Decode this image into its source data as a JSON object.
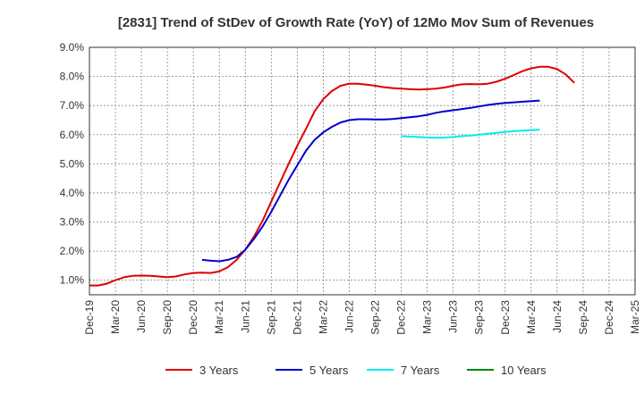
{
  "chart_data": {
    "type": "line",
    "title": "[2831]  Trend of StDev of Growth Rate (YoY) of 12Mo Mov Sum of Revenues",
    "xlabel": "",
    "ylabel": "",
    "x_ticks": [
      "Dec-19",
      "Mar-20",
      "Jun-20",
      "Sep-20",
      "Dec-20",
      "Mar-21",
      "Jun-21",
      "Sep-21",
      "Dec-21",
      "Mar-22",
      "Jun-22",
      "Sep-22",
      "Dec-22",
      "Mar-23",
      "Jun-23",
      "Sep-23",
      "Dec-23",
      "Mar-24",
      "Jun-24",
      "Sep-24",
      "Dec-24",
      "Mar-25"
    ],
    "y_ticks": [
      "1.0%",
      "2.0%",
      "3.0%",
      "4.0%",
      "5.0%",
      "6.0%",
      "7.0%",
      "8.0%",
      "9.0%"
    ],
    "ylim": [
      0.5,
      9.0
    ],
    "grid": true,
    "legend_position": "bottom",
    "series": [
      {
        "name": "3 Years",
        "color": "#dd0000",
        "points": [
          [
            0,
            0.82
          ],
          [
            1,
            0.82
          ],
          [
            2,
            0.88
          ],
          [
            3,
            1.0
          ],
          [
            4,
            1.1
          ],
          [
            5,
            1.15
          ],
          [
            6,
            1.16
          ],
          [
            7,
            1.15
          ],
          [
            8,
            1.13
          ],
          [
            9,
            1.1
          ],
          [
            10,
            1.13
          ],
          [
            11,
            1.2
          ],
          [
            12,
            1.25
          ],
          [
            13,
            1.26
          ],
          [
            14,
            1.25
          ],
          [
            15,
            1.3
          ],
          [
            16,
            1.45
          ],
          [
            17,
            1.7
          ],
          [
            18,
            2.05
          ],
          [
            19,
            2.5
          ],
          [
            20,
            3.05
          ],
          [
            21,
            3.7
          ],
          [
            22,
            4.35
          ],
          [
            23,
            5.0
          ],
          [
            24,
            5.62
          ],
          [
            25,
            6.2
          ],
          [
            26,
            6.8
          ],
          [
            27,
            7.22
          ],
          [
            28,
            7.5
          ],
          [
            29,
            7.68
          ],
          [
            30,
            7.75
          ],
          [
            31,
            7.75
          ],
          [
            32,
            7.72
          ],
          [
            33,
            7.68
          ],
          [
            34,
            7.63
          ],
          [
            35,
            7.6
          ],
          [
            36,
            7.58
          ],
          [
            37,
            7.56
          ],
          [
            38,
            7.55
          ],
          [
            39,
            7.56
          ],
          [
            40,
            7.58
          ],
          [
            41,
            7.62
          ],
          [
            42,
            7.68
          ],
          [
            43,
            7.73
          ],
          [
            44,
            7.74
          ],
          [
            45,
            7.73
          ],
          [
            46,
            7.75
          ],
          [
            47,
            7.82
          ],
          [
            48,
            7.92
          ],
          [
            49,
            8.05
          ],
          [
            50,
            8.18
          ],
          [
            51,
            8.28
          ],
          [
            52,
            8.33
          ],
          [
            53,
            8.33
          ],
          [
            54,
            8.25
          ],
          [
            55,
            8.07
          ],
          [
            56,
            7.78
          ]
        ]
      },
      {
        "name": "5 Years",
        "color": "#0000cc",
        "points": [
          [
            13,
            1.7
          ],
          [
            14,
            1.67
          ],
          [
            15,
            1.65
          ],
          [
            16,
            1.7
          ],
          [
            17,
            1.8
          ],
          [
            18,
            2.05
          ],
          [
            19,
            2.42
          ],
          [
            20,
            2.85
          ],
          [
            21,
            3.35
          ],
          [
            22,
            3.9
          ],
          [
            23,
            4.45
          ],
          [
            24,
            4.95
          ],
          [
            25,
            5.45
          ],
          [
            26,
            5.82
          ],
          [
            27,
            6.08
          ],
          [
            28,
            6.27
          ],
          [
            29,
            6.42
          ],
          [
            30,
            6.5
          ],
          [
            31,
            6.53
          ],
          [
            32,
            6.53
          ],
          [
            33,
            6.52
          ],
          [
            34,
            6.52
          ],
          [
            35,
            6.54
          ],
          [
            36,
            6.57
          ],
          [
            37,
            6.6
          ],
          [
            38,
            6.63
          ],
          [
            39,
            6.68
          ],
          [
            40,
            6.75
          ],
          [
            41,
            6.8
          ],
          [
            42,
            6.84
          ],
          [
            43,
            6.88
          ],
          [
            44,
            6.92
          ],
          [
            45,
            6.97
          ],
          [
            46,
            7.02
          ],
          [
            47,
            7.06
          ],
          [
            48,
            7.09
          ],
          [
            49,
            7.11
          ],
          [
            50,
            7.13
          ],
          [
            51,
            7.15
          ],
          [
            52,
            7.17
          ]
        ]
      },
      {
        "name": "7 Years",
        "color": "#00eeee",
        "points": [
          [
            36,
            5.95
          ],
          [
            37,
            5.93
          ],
          [
            38,
            5.92
          ],
          [
            39,
            5.9
          ],
          [
            40,
            5.89
          ],
          [
            41,
            5.9
          ],
          [
            42,
            5.92
          ],
          [
            43,
            5.95
          ],
          [
            44,
            5.97
          ],
          [
            45,
            6.0
          ],
          [
            46,
            6.03
          ],
          [
            47,
            6.06
          ],
          [
            48,
            6.09
          ],
          [
            49,
            6.12
          ],
          [
            50,
            6.14
          ],
          [
            51,
            6.16
          ],
          [
            52,
            6.17
          ]
        ]
      },
      {
        "name": "10 Years",
        "color": "#008800",
        "points": []
      }
    ]
  }
}
